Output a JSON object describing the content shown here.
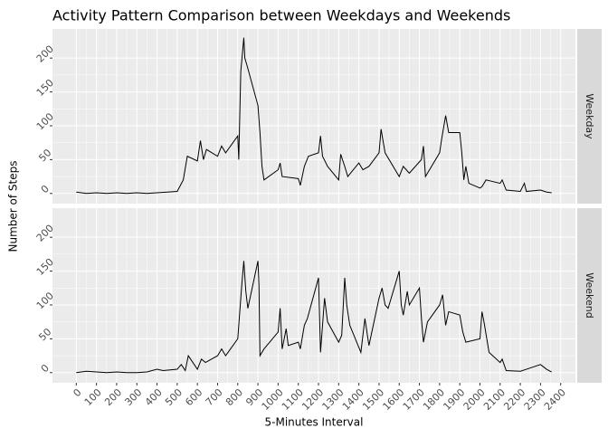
{
  "chart_data": {
    "type": "line",
    "title": "Activity Pattern Comparison between Weekdays and Weekends",
    "xlabel": "5-Minutes Interval",
    "ylabel": "Number of Steps",
    "xlim": [
      -118,
      2473
    ],
    "ylim": [
      -15,
      243
    ],
    "xticks": [
      0,
      100,
      200,
      300,
      400,
      500,
      600,
      700,
      800,
      900,
      1000,
      1100,
      1200,
      1300,
      1400,
      1500,
      1600,
      1700,
      1800,
      1900,
      2000,
      2100,
      2200,
      2300,
      2400
    ],
    "yticks": [
      0,
      50,
      100,
      150,
      200
    ],
    "grid": true,
    "facet": "rows",
    "series": [
      {
        "name": "Weekday",
        "color": "#000000",
        "x": [
          0,
          50,
          100,
          150,
          200,
          250,
          300,
          350,
          400,
          450,
          500,
          530,
          550,
          600,
          615,
          630,
          645,
          700,
          720,
          740,
          800,
          805,
          815,
          830,
          835,
          845,
          900,
          910,
          920,
          930,
          1000,
          1010,
          1020,
          1100,
          1110,
          1130,
          1150,
          1200,
          1210,
          1220,
          1245,
          1300,
          1310,
          1330,
          1345,
          1400,
          1420,
          1450,
          1500,
          1510,
          1530,
          1600,
          1620,
          1650,
          1710,
          1720,
          1730,
          1800,
          1810,
          1830,
          1845,
          1900,
          1910,
          1920,
          1930,
          1945,
          2000,
          2010,
          2030,
          2100,
          2110,
          2130,
          2200,
          2220,
          2230,
          2300,
          2330,
          2355
        ],
        "values": [
          2,
          0,
          1,
          0,
          1,
          0,
          1,
          0,
          1,
          2,
          3,
          20,
          55,
          48,
          78,
          50,
          65,
          55,
          70,
          60,
          85,
          50,
          180,
          230,
          200,
          190,
          130,
          90,
          40,
          20,
          35,
          45,
          25,
          22,
          12,
          40,
          55,
          60,
          85,
          55,
          40,
          20,
          58,
          40,
          25,
          45,
          35,
          40,
          60,
          95,
          60,
          25,
          40,
          30,
          50,
          70,
          25,
          60,
          80,
          115,
          90,
          90,
          60,
          20,
          40,
          15,
          8,
          10,
          20,
          15,
          20,
          5,
          3,
          15,
          3,
          5,
          2,
          1
        ]
      },
      {
        "name": "Weekend",
        "color": "#000000",
        "x": [
          0,
          50,
          100,
          150,
          200,
          250,
          300,
          350,
          400,
          430,
          500,
          520,
          540,
          555,
          600,
          620,
          640,
          700,
          720,
          740,
          800,
          820,
          830,
          840,
          850,
          900,
          905,
          910,
          930,
          1000,
          1010,
          1020,
          1040,
          1050,
          1100,
          1110,
          1130,
          1145,
          1200,
          1210,
          1230,
          1245,
          1300,
          1315,
          1330,
          1340,
          1355,
          1410,
          1430,
          1450,
          1500,
          1515,
          1530,
          1545,
          1600,
          1610,
          1620,
          1640,
          1650,
          1700,
          1710,
          1720,
          1740,
          1800,
          1815,
          1830,
          1845,
          1900,
          1915,
          1930,
          2000,
          2010,
          2020,
          2045,
          2100,
          2110,
          2130,
          2200,
          2230,
          2300,
          2330,
          2355
        ],
        "values": [
          0,
          2,
          1,
          0,
          1,
          0,
          0,
          1,
          5,
          3,
          5,
          12,
          3,
          25,
          5,
          20,
          15,
          25,
          35,
          25,
          50,
          130,
          165,
          120,
          95,
          165,
          130,
          25,
          35,
          60,
          95,
          35,
          65,
          40,
          45,
          35,
          70,
          80,
          140,
          30,
          110,
          75,
          45,
          55,
          140,
          100,
          70,
          30,
          80,
          40,
          110,
          125,
          100,
          95,
          150,
          100,
          85,
          120,
          100,
          125,
          80,
          45,
          75,
          100,
          115,
          70,
          90,
          85,
          60,
          45,
          50,
          90,
          75,
          30,
          15,
          20,
          3,
          2,
          5,
          12,
          5,
          1
        ]
      }
    ]
  }
}
